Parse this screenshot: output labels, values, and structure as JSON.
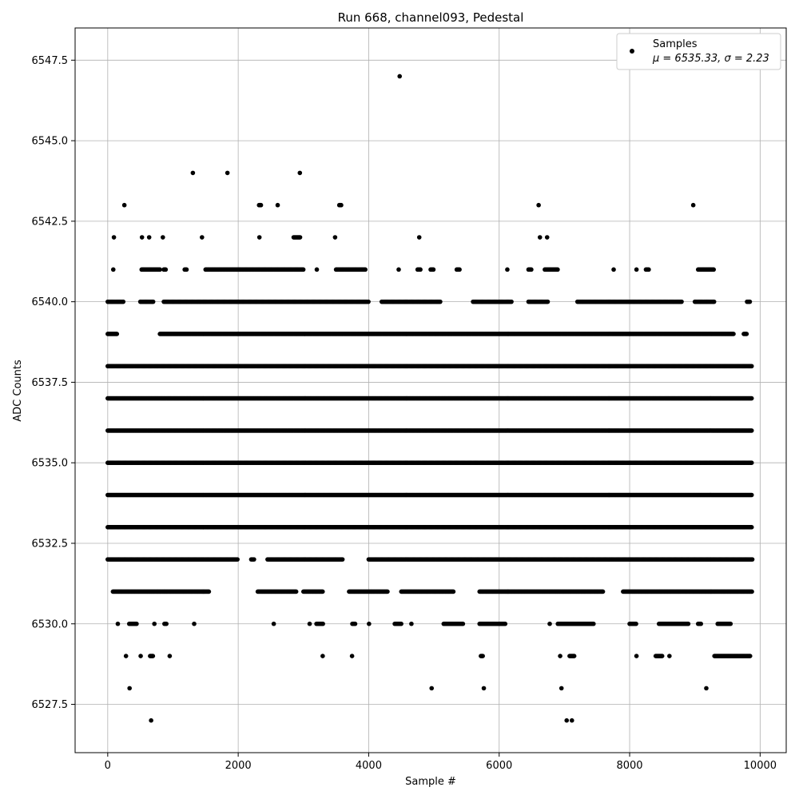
{
  "chart_data": {
    "type": "scatter",
    "title": "Run 668, channel093, Pedestal",
    "xlabel": "Sample #",
    "ylabel": "ADC Counts",
    "xlim": [
      -500,
      10400
    ],
    "ylim": [
      6526.0,
      6548.5
    ],
    "xticks": [
      0,
      2000,
      4000,
      6000,
      8000,
      10000
    ],
    "xtick_labels": [
      "0",
      "2000",
      "4000",
      "6000",
      "8000",
      "10000"
    ],
    "yticks": [
      6527.5,
      6530.0,
      6532.5,
      6535.0,
      6537.5,
      6540.0,
      6542.5,
      6545.0,
      6547.5
    ],
    "ytick_labels": [
      "6527.5",
      "6530.0",
      "6532.5",
      "6535.0",
      "6537.5",
      "6540.0",
      "6542.5",
      "6545.0",
      "6547.5"
    ],
    "grid": true,
    "legend": {
      "placement": "top-right",
      "label": "Samples",
      "stats": "μ = 6535.33, σ = 2.23"
    },
    "marker_color": "#000000",
    "series": [
      {
        "name": "Samples",
        "levels": [
          {
            "y": 6535,
            "x_ranges": [
              [
                0,
                9880
              ]
            ]
          },
          {
            "y": 6536,
            "x_ranges": [
              [
                0,
                9880
              ]
            ]
          },
          {
            "y": 6534,
            "x_ranges": [
              [
                0,
                9880
              ]
            ]
          },
          {
            "y": 6537,
            "x_ranges": [
              [
                0,
                9880
              ]
            ]
          },
          {
            "y": 6533,
            "x_ranges": [
              [
                0,
                9880
              ]
            ]
          },
          {
            "y": 6538,
            "x_ranges": [
              [
                0,
                9880
              ]
            ]
          },
          {
            "y": 6532,
            "x_ranges": [
              [
                0,
                2000
              ],
              [
                2200,
                2250
              ],
              [
                2450,
                3600
              ],
              [
                4000,
                9880
              ]
            ]
          },
          {
            "y": 6539,
            "x_ranges": [
              [
                0,
                150
              ],
              [
                800,
                9600
              ],
              [
                9750,
                9800
              ]
            ]
          },
          {
            "y": 6531,
            "x_ranges": [
              [
                80,
                1550
              ],
              [
                2300,
                2900
              ],
              [
                3000,
                3300
              ],
              [
                3700,
                4300
              ],
              [
                4500,
                5300
              ],
              [
                5700,
                7600
              ],
              [
                7900,
                9880
              ]
            ]
          },
          {
            "y": 6540,
            "x_ranges": [
              [
                0,
                250
              ],
              [
                500,
                700
              ],
              [
                860,
                4000
              ],
              [
                4200,
                5100
              ],
              [
                5600,
                6200
              ],
              [
                6450,
                6750
              ],
              [
                7200,
                8800
              ],
              [
                9000,
                9300
              ],
              [
                9800,
                9850
              ]
            ]
          },
          {
            "y": 6530,
            "x_ranges": [
              [
                150,
                160
              ],
              [
                330,
                450
              ],
              [
                710,
                720
              ],
              [
                870,
                900
              ],
              [
                1320,
                1330
              ],
              [
                2540,
                2550
              ],
              [
                3090,
                3100
              ],
              [
                3200,
                3300
              ],
              [
                3750,
                3800
              ],
              [
                4000,
                4010
              ],
              [
                4400,
                4500
              ],
              [
                4650,
                4660
              ],
              [
                5150,
                5450
              ],
              [
                5700,
                6100
              ],
              [
                6770,
                6780
              ],
              [
                6900,
                7450
              ],
              [
                8000,
                8100
              ],
              [
                8450,
                8900
              ],
              [
                9050,
                9100
              ],
              [
                9350,
                9550
              ]
            ]
          },
          {
            "y": 6541,
            "x_ranges": [
              [
                80,
                90
              ],
              [
                520,
                800
              ],
              [
                860,
                900
              ],
              [
                1180,
                1220
              ],
              [
                1500,
                3000
              ],
              [
                3200,
                3210
              ],
              [
                3500,
                3950
              ],
              [
                4450,
                4470
              ],
              [
                4750,
                4800
              ],
              [
                4950,
                5000
              ],
              [
                5350,
                5400
              ],
              [
                6120,
                6130
              ],
              [
                6450,
                6500
              ],
              [
                6700,
                6900
              ],
              [
                7750,
                7760
              ],
              [
                8100,
                8110
              ],
              [
                8250,
                8300
              ],
              [
                9050,
                9300
              ]
            ]
          },
          {
            "y": 6529,
            "x_ranges": [
              [
                270,
                290
              ],
              [
                500,
                510
              ],
              [
                650,
                700
              ],
              [
                940,
                960
              ],
              [
                3290,
                3300
              ],
              [
                3740,
                3750
              ],
              [
                5720,
                5760
              ],
              [
                6930,
                6940
              ],
              [
                7080,
                7160
              ],
              [
                8100,
                8110
              ],
              [
                8400,
                8500
              ],
              [
                8600,
                8620
              ],
              [
                9300,
                9850
              ]
            ]
          },
          {
            "y": 6542,
            "x_ranges": [
              [
                90,
                100
              ],
              [
                520,
                530
              ],
              [
                630,
                640
              ],
              [
                840,
                850
              ],
              [
                1440,
                1450
              ],
              [
                2320,
                2330
              ],
              [
                2850,
                2950
              ],
              [
                3480,
                3490
              ],
              [
                4770,
                4780
              ],
              [
                6620,
                6630
              ],
              [
                6730,
                6740
              ]
            ]
          },
          {
            "y": 6543,
            "x_ranges": [
              [
                250,
                260
              ],
              [
                2320,
                2360
              ],
              [
                2600,
                2610
              ],
              [
                3550,
                3590
              ],
              [
                6600,
                6610
              ],
              [
                8970,
                8980
              ]
            ]
          },
          {
            "y": 6528,
            "x_ranges": [
              [
                330,
                340
              ],
              [
                4960,
                4970
              ],
              [
                5760,
                5770
              ],
              [
                6950,
                6960
              ],
              [
                9170,
                9180
              ]
            ]
          },
          {
            "y": 6544,
            "x_ranges": [
              [
                1300,
                1310
              ],
              [
                1830,
                1840
              ],
              [
                2940,
                2950
              ]
            ]
          },
          {
            "y": 6527,
            "x_ranges": [
              [
                660,
                670
              ],
              [
                7030,
                7040
              ],
              [
                7110,
                7120
              ]
            ]
          },
          {
            "y": 6547,
            "x_ranges": [
              [
                4470,
                4480
              ]
            ]
          }
        ]
      }
    ]
  }
}
